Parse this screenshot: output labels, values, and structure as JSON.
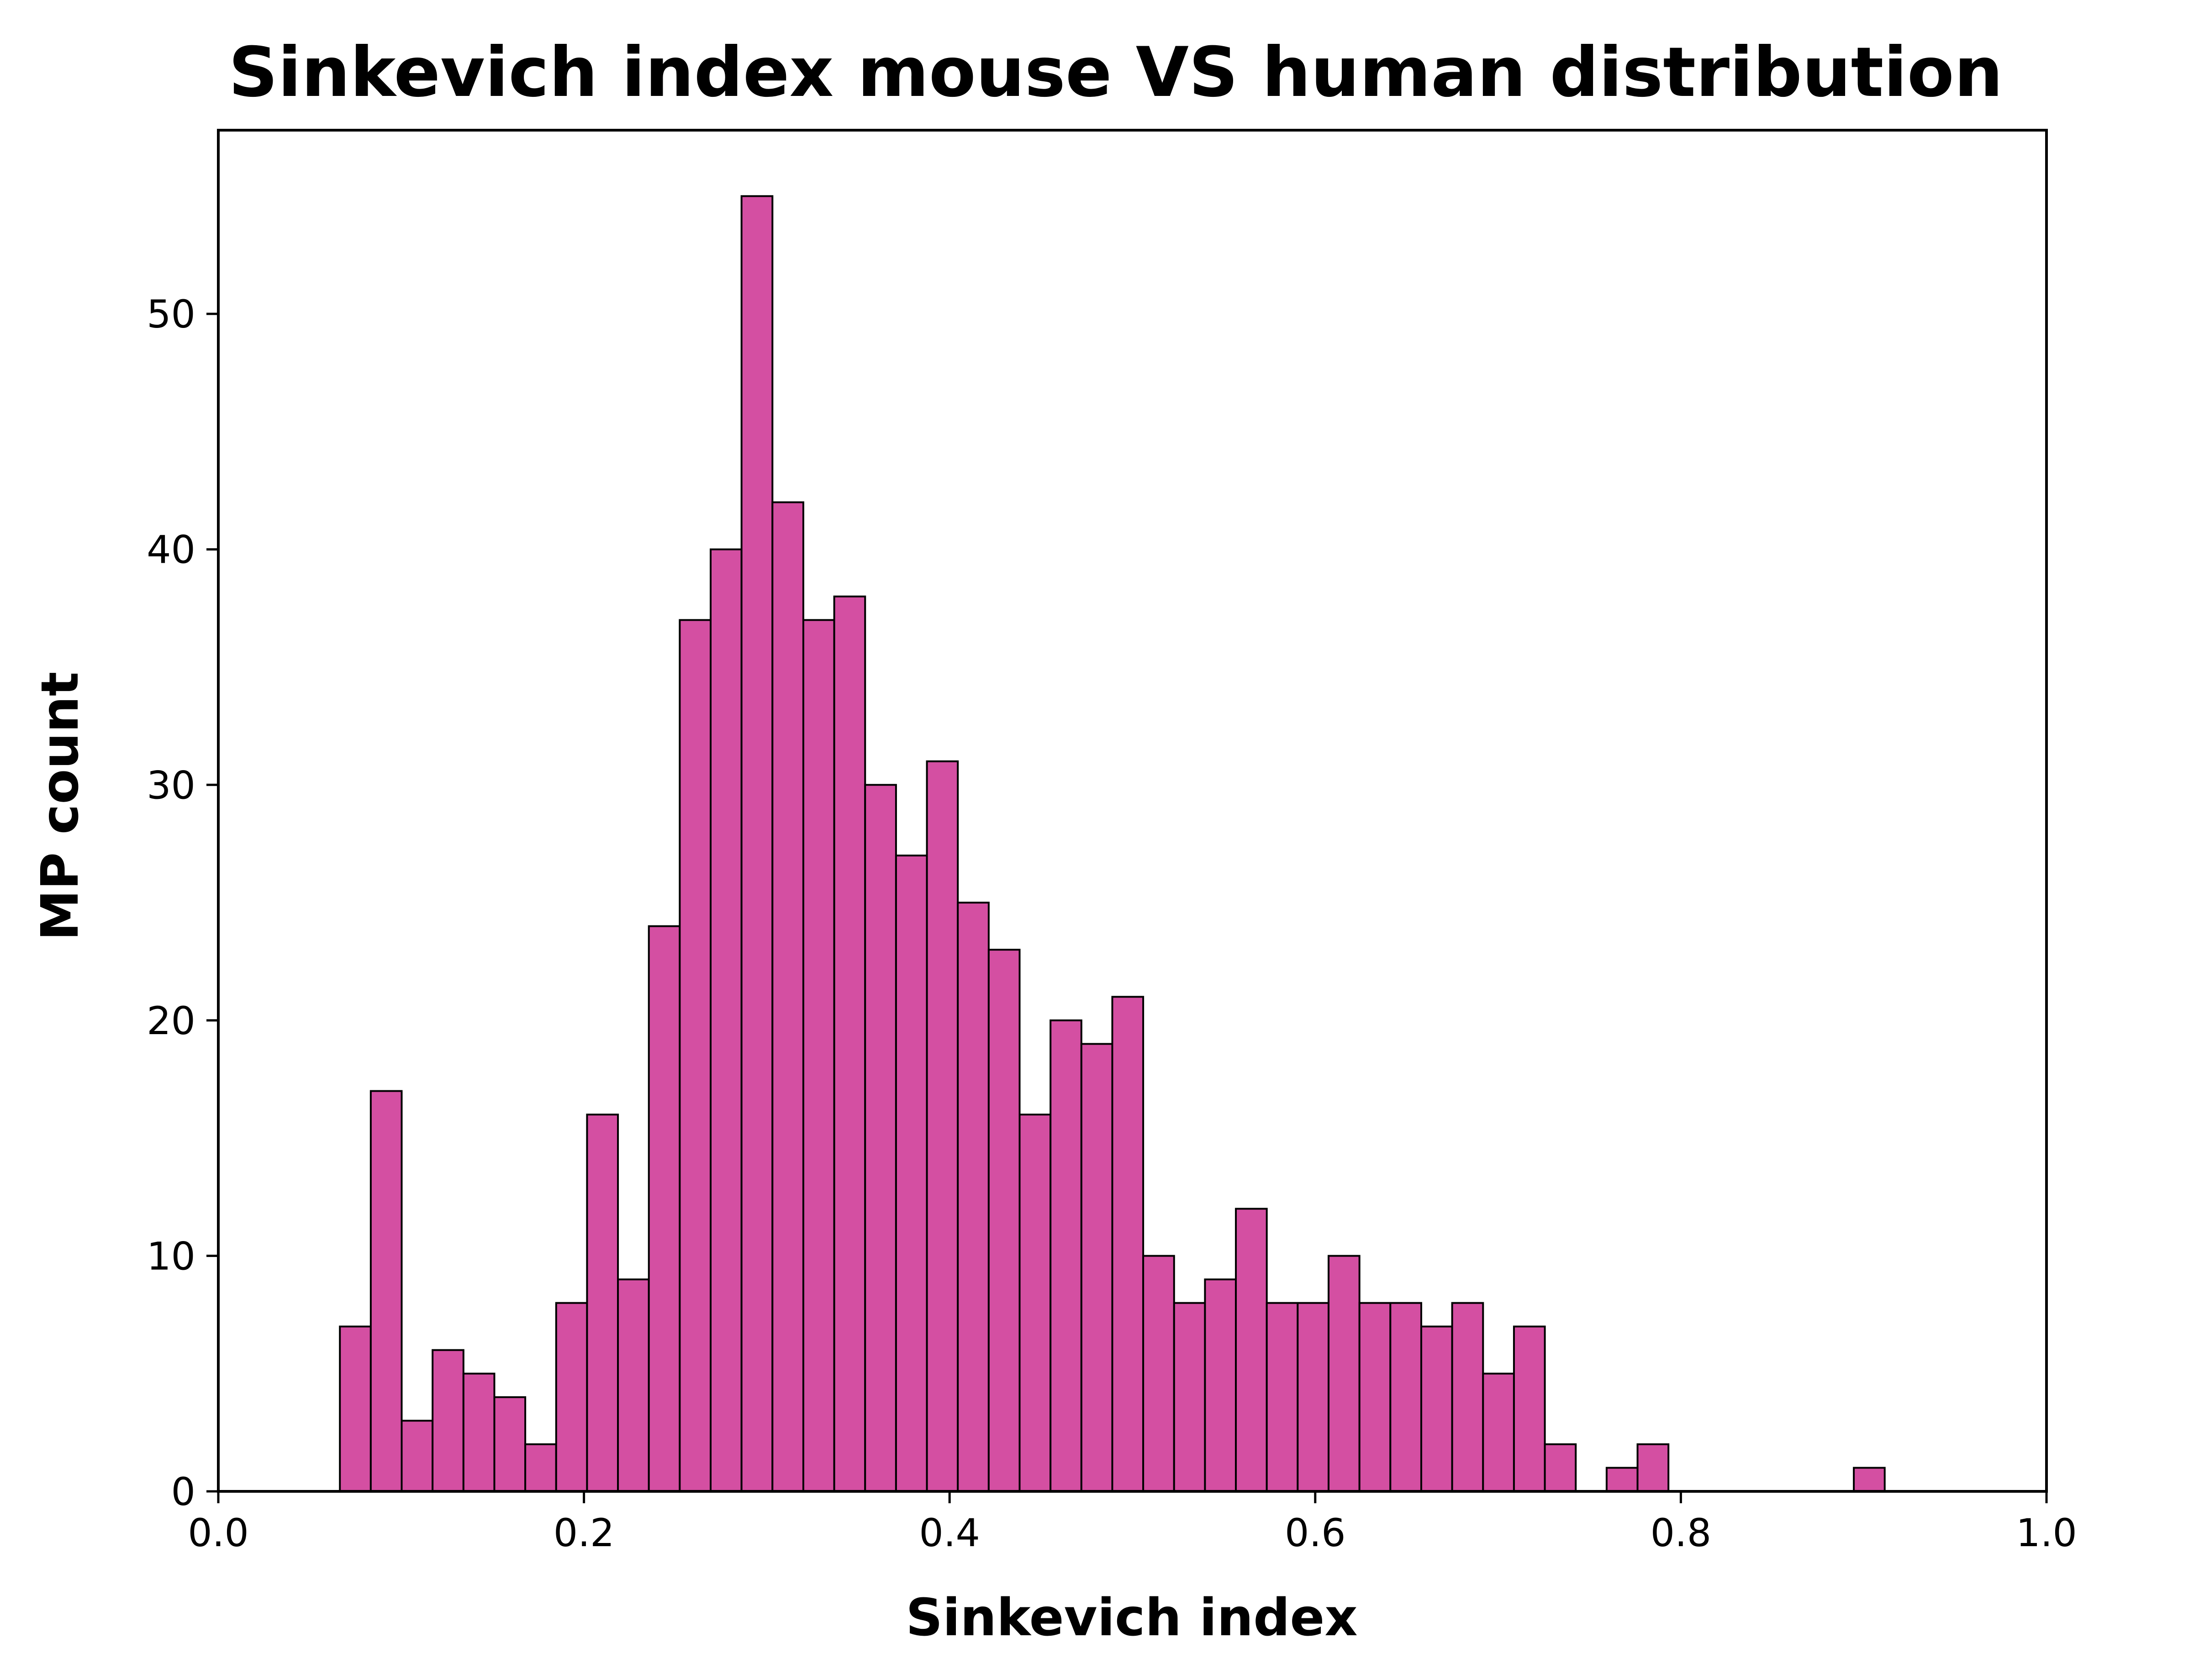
{
  "chart_data": {
    "type": "bar",
    "title": "Sinkevich index mouse VS human distribution",
    "xlabel": "Sinkevich index",
    "ylabel": "MP count",
    "xlim": [
      0.0,
      1.0
    ],
    "ylim": [
      0,
      57.8
    ],
    "xticks": [
      "0.0",
      "0.2",
      "0.4",
      "0.6",
      "0.8",
      "1.0"
    ],
    "xtick_values": [
      0.0,
      0.2,
      0.4,
      0.6,
      0.8,
      1.0
    ],
    "yticks": [
      "0",
      "10",
      "20",
      "30",
      "40",
      "50"
    ],
    "ytick_values": [
      0,
      10,
      20,
      30,
      40,
      50
    ],
    "grid": false,
    "bar_color": "#d44fa2",
    "edge_color": "#000000",
    "bin_start": 0.0665,
    "bin_width": 0.0169,
    "counts": [
      7,
      17,
      3,
      6,
      5,
      4,
      2,
      8,
      16,
      9,
      24,
      37,
      40,
      55,
      42,
      37,
      38,
      30,
      27,
      31,
      25,
      23,
      16,
      20,
      19,
      21,
      10,
      8,
      9,
      12,
      8,
      8,
      10,
      8,
      8,
      7,
      8,
      5,
      7,
      2,
      0,
      1,
      2,
      0,
      0,
      0,
      0,
      0,
      0,
      1
    ]
  }
}
